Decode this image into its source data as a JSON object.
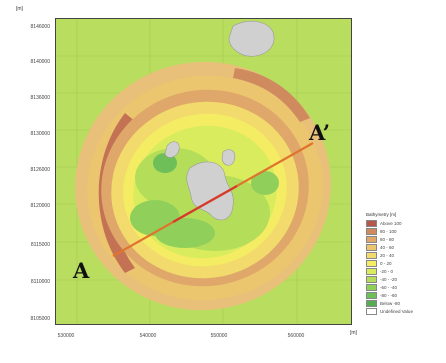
{
  "units": {
    "y_unit": "[m]",
    "x_unit": "[m]"
  },
  "y_axis_ticks": [
    "8146000",
    "8140000",
    "8136000",
    "8130000",
    "8126000",
    "8120000",
    "8115000",
    "8110000",
    "8105000"
  ],
  "x_axis_ticks": [
    "530000",
    "540000",
    "550000",
    "560000"
  ],
  "profile": {
    "start_label": "A",
    "end_label": "A’"
  },
  "legend": {
    "title": "Bathymetry [m]",
    "items": [
      {
        "label": "Above 100",
        "color": "#b5574a"
      },
      {
        "label": "80 - 100",
        "color": "#cf8a5e"
      },
      {
        "label": "60 - 80",
        "color": "#dfa86a"
      },
      {
        "label": "40 - 60",
        "color": "#ecc56f"
      },
      {
        "label": "20 - 40",
        "color": "#f2db6c"
      },
      {
        "label": "0 - 20",
        "color": "#f4ec63"
      },
      {
        "label": "-20 - 0",
        "color": "#d9ec5e"
      },
      {
        "label": "-40 - -20",
        "color": "#b4dd5a"
      },
      {
        "label": "-60 - -40",
        "color": "#8fcf5a"
      },
      {
        "label": "-80 - -60",
        "color": "#6fbf58"
      },
      {
        "label": "Below -80",
        "color": "#57ad54"
      },
      {
        "label": "Undefined Value",
        "color": "#ffffff"
      }
    ]
  },
  "colors": {
    "background_green": "#b9dd5f",
    "island_gray": "#d0d0d0",
    "profile_line": "#e0732e",
    "profile_line_center": "#d63a2c"
  }
}
